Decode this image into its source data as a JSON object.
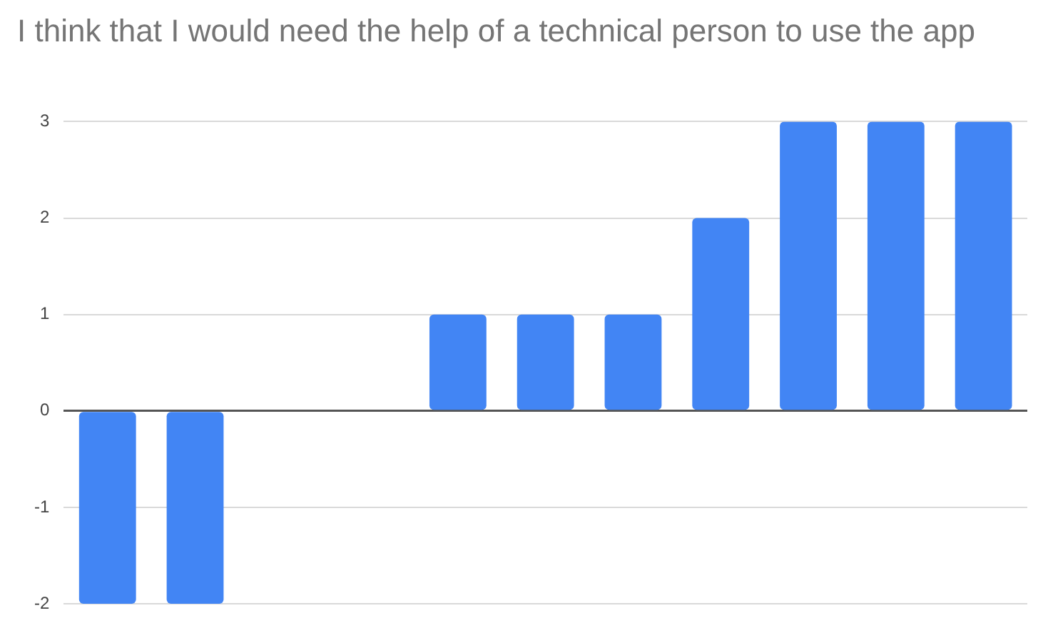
{
  "chart_data": {
    "type": "bar",
    "title": "I think that I would need the help of a technical person to use the app",
    "categories": [
      null,
      null,
      null,
      null,
      null,
      null,
      null,
      null,
      null,
      null,
      null
    ],
    "values": [
      -2,
      -2,
      0,
      0,
      1,
      1,
      1,
      2,
      3,
      3,
      3
    ],
    "color": "#4285f4",
    "ylim": [
      -2,
      3
    ],
    "yticks": [
      -2,
      -1,
      0,
      1,
      2,
      3
    ],
    "grid": "y",
    "legend": false,
    "tick_labels": "y"
  }
}
